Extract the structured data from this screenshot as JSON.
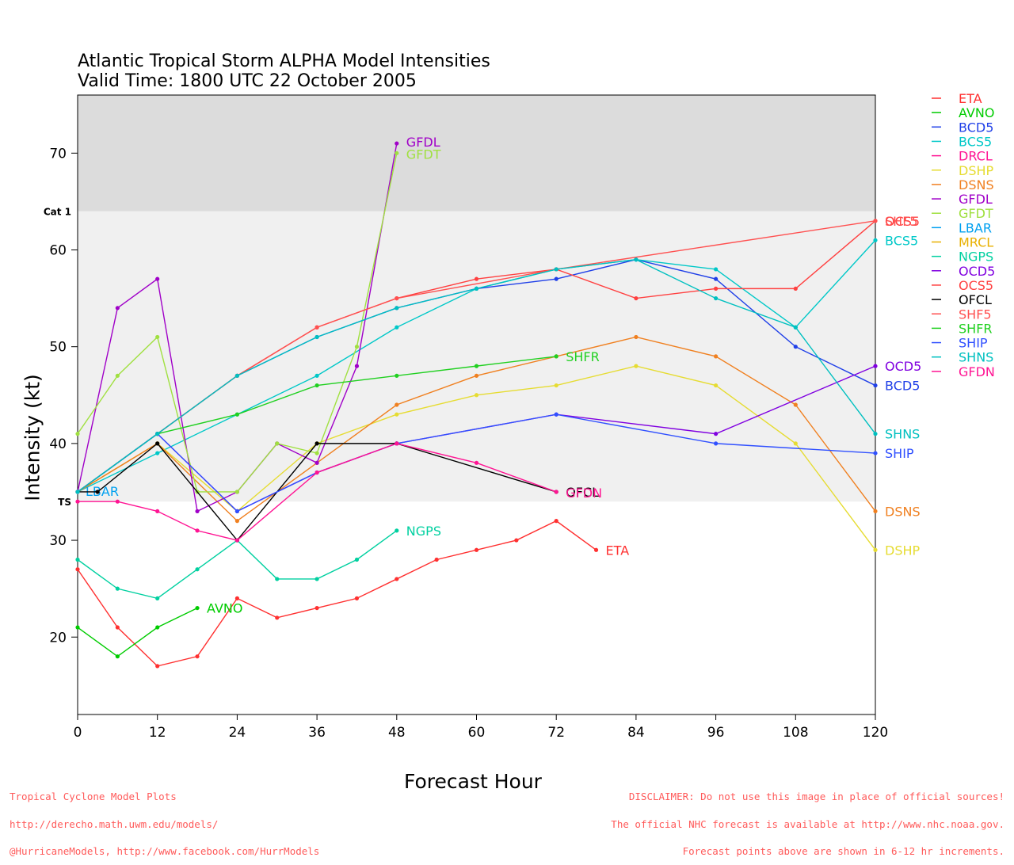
{
  "title_line1": "Atlantic Tropical Storm ALPHA Model Intensities",
  "title_line2": "Valid Time: 1800 UTC 22 October 2005",
  "footer_left": [
    "Tropical Cyclone Model Plots",
    "http://derecho.math.uwm.edu/models/",
    "@HurricaneModels, http://www.facebook.com/HurrModels"
  ],
  "footer_right": [
    "DISCLAIMER: Do not use this image in place of official sources!",
    "The official NHC forecast is available at http://www.nhc.noaa.gov.",
    "Forecast points above are shown in 6-12 hr increments."
  ],
  "chart_data": {
    "type": "line",
    "title": "Atlantic Tropical Storm ALPHA Model Intensities",
    "subtitle": "Valid Time: 1800 UTC 22 October 2005",
    "xlabel": "Forecast Hour",
    "ylabel": "Intensity (kt)",
    "xlim": [
      0,
      120
    ],
    "ylim": [
      12,
      76
    ],
    "xticks": [
      0,
      12,
      24,
      36,
      48,
      60,
      72,
      84,
      96,
      108,
      120
    ],
    "yticks": [
      20,
      30,
      40,
      50,
      60,
      70
    ],
    "thresholds": [
      {
        "label": "TS",
        "value": 34
      },
      {
        "label": "Cat 1",
        "value": 64
      }
    ],
    "band_colors": [
      "#ffffff",
      "#f0f0f0",
      "#dcdcdc"
    ],
    "legend_position": "right",
    "series": [
      {
        "name": "ETA",
        "color": "#ff3030",
        "label": "ETA",
        "x": [
          0,
          6,
          12,
          18,
          24,
          30,
          36,
          42,
          48,
          54,
          60,
          66,
          72,
          78
        ],
        "y": [
          27,
          21,
          17,
          18,
          24,
          22,
          23,
          24,
          26,
          28,
          29,
          30,
          32,
          29
        ]
      },
      {
        "name": "AVNO",
        "color": "#00cc00",
        "label": "AVNO",
        "x": [
          0,
          6,
          12,
          18
        ],
        "y": [
          21,
          18,
          21,
          23
        ]
      },
      {
        "name": "BCD5",
        "color": "#2040e8",
        "label": "BCD5",
        "x": [
          0,
          12,
          24,
          36,
          48,
          60,
          72,
          84,
          96,
          108,
          120
        ],
        "y": [
          35,
          41,
          47,
          51,
          54,
          56,
          57,
          59,
          57,
          50,
          46
        ]
      },
      {
        "name": "BCS5",
        "color": "#00c8c8",
        "label": "BCS5",
        "x": [
          0,
          12,
          24,
          36,
          48,
          60,
          72,
          84,
          96,
          108,
          120
        ],
        "y": [
          35,
          39,
          43,
          47,
          52,
          56,
          58,
          59,
          58,
          52,
          61
        ]
      },
      {
        "name": "DRCL",
        "color": "#ff1493",
        "label": "",
        "x": [],
        "y": []
      },
      {
        "name": "DSHP",
        "color": "#e6dc32",
        "label": "DSHP",
        "x": [
          0,
          12,
          24,
          36,
          48,
          60,
          72,
          84,
          96,
          108,
          120
        ],
        "y": [
          35,
          40,
          33,
          40,
          43,
          45,
          46,
          48,
          46,
          40,
          29
        ]
      },
      {
        "name": "DSNS",
        "color": "#f08020",
        "label": "DSNS",
        "x": [
          0,
          12,
          24,
          36,
          48,
          60,
          72,
          84,
          96,
          108,
          120
        ],
        "y": [
          35,
          40,
          32,
          38,
          44,
          47,
          49,
          51,
          49,
          44,
          33
        ]
      },
      {
        "name": "GFDL",
        "color": "#a000c8",
        "label": "GFDL",
        "x": [
          0,
          6,
          12,
          18,
          24,
          30,
          36,
          42,
          48
        ],
        "y": [
          35,
          54,
          57,
          33,
          35,
          40,
          38,
          48,
          71
        ]
      },
      {
        "name": "GFDT",
        "color": "#a0e040",
        "label": "GFDT",
        "x": [
          0,
          6,
          12,
          18,
          24,
          30,
          36,
          42,
          48
        ],
        "y": [
          41,
          47,
          51,
          35,
          35,
          40,
          39,
          50,
          70
        ]
      },
      {
        "name": "LBAR",
        "color": "#00a0f0",
        "label": "LBAR",
        "x": [
          0
        ],
        "y": [
          35
        ]
      },
      {
        "name": "MRCL",
        "color": "#e8b000",
        "label": "",
        "x": [],
        "y": []
      },
      {
        "name": "NGPS",
        "color": "#00d0a0",
        "label": "NGPS",
        "x": [
          0,
          6,
          12,
          18,
          24,
          30,
          36,
          42,
          48
        ],
        "y": [
          28,
          25,
          24,
          27,
          30,
          26,
          26,
          28,
          31
        ]
      },
      {
        "name": "OCD5",
        "color": "#8000e0",
        "label": "OCD5",
        "x": [
          0,
          12,
          24,
          36,
          48,
          72,
          96,
          120
        ],
        "y": [
          35,
          41,
          33,
          37,
          40,
          43,
          41,
          48
        ]
      },
      {
        "name": "OCS5",
        "color": "#ff4040",
        "label": "OCS5",
        "x": [
          0,
          12,
          24,
          36,
          48,
          60,
          72,
          84,
          96,
          108,
          120
        ],
        "y": [
          35,
          41,
          47,
          52,
          55,
          57,
          58,
          55,
          56,
          56,
          63
        ]
      },
      {
        "name": "OFCL",
        "color": "#000000",
        "label": "OFCL",
        "x": [
          0,
          3,
          12,
          24,
          36,
          48,
          72
        ],
        "y": [
          35,
          35,
          40,
          30,
          40,
          40,
          35
        ]
      },
      {
        "name": "SHF5",
        "color": "#ff5050",
        "label": "SHF5",
        "x": [
          0,
          12,
          24,
          36,
          48,
          72,
          120
        ],
        "y": [
          35,
          41,
          47,
          52,
          55,
          58,
          63
        ]
      },
      {
        "name": "SHFR",
        "color": "#20d020",
        "label": "SHFR",
        "x": [
          0,
          12,
          24,
          36,
          48,
          60,
          72
        ],
        "y": [
          35,
          41,
          43,
          46,
          47,
          48,
          49
        ]
      },
      {
        "name": "SHIP",
        "color": "#3050ff",
        "label": "SHIP",
        "x": [
          0,
          12,
          24,
          36,
          48,
          72,
          96,
          120
        ],
        "y": [
          35,
          41,
          33,
          37,
          40,
          43,
          40,
          39
        ]
      },
      {
        "name": "SHNS",
        "color": "#00c0c0",
        "label": "SHNS",
        "x": [
          0,
          12,
          24,
          36,
          48,
          60,
          72,
          84,
          96,
          108,
          120
        ],
        "y": [
          35,
          41,
          47,
          51,
          54,
          56,
          58,
          59,
          55,
          52,
          41
        ]
      },
      {
        "name": "GFDN",
        "color": "#ff1493",
        "label": "GFDN",
        "x": [
          0,
          6,
          12,
          18,
          24,
          36,
          48,
          60,
          72
        ],
        "y": [
          34,
          34,
          33,
          31,
          30,
          37,
          40,
          38,
          35
        ]
      }
    ]
  }
}
